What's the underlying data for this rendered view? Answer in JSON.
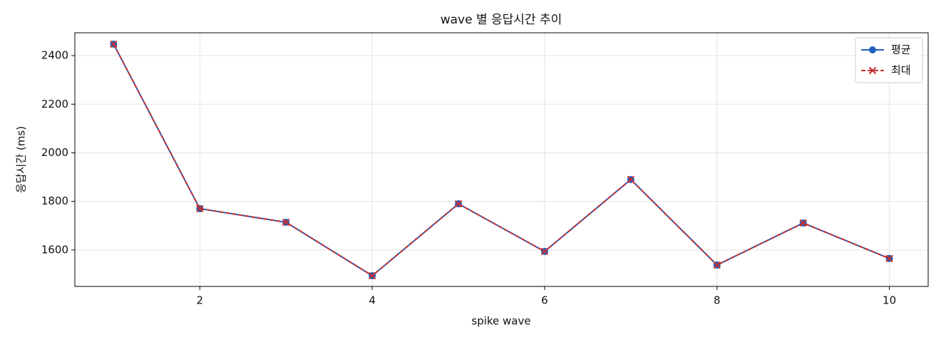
{
  "chart_data": {
    "type": "line",
    "title": "wave 별 응답시간 추이",
    "xlabel": "spike wave",
    "ylabel": "응답시간 (ms)",
    "x": [
      1,
      2,
      3,
      4,
      5,
      6,
      7,
      8,
      9,
      10
    ],
    "series": [
      {
        "name": "평균",
        "color": "#1f5fbf",
        "marker": "circle",
        "dash": false,
        "values": [
          2447,
          1770,
          1714,
          1494,
          1790,
          1594,
          1890,
          1538,
          1711,
          1565
        ]
      },
      {
        "name": "최대",
        "color": "#c62f2f",
        "marker": "x",
        "dash": true,
        "values": [
          2447,
          1770,
          1714,
          1494,
          1790,
          1594,
          1890,
          1538,
          1711,
          1565
        ]
      }
    ],
    "xlim": [
      0.55,
      10.45
    ],
    "xticks": [
      2,
      4,
      6,
      8,
      10
    ],
    "ylim": [
      1450,
      2494
    ],
    "yticks": [
      1600,
      1800,
      2000,
      2200,
      2400
    ],
    "grid": true,
    "legend": "upper right"
  }
}
